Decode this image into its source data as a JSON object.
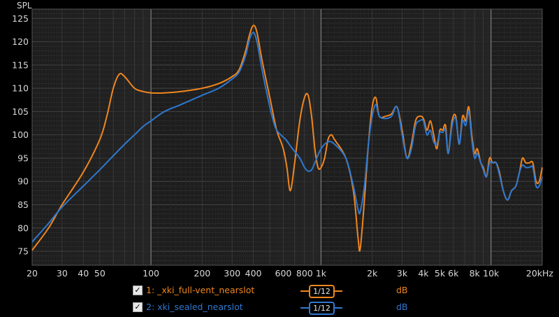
{
  "chart_data": {
    "type": "line",
    "xscale": "log",
    "xlim": [
      20,
      20000
    ],
    "ylim": [
      72,
      127
    ],
    "ylabel": "SPL",
    "grid": true,
    "x_ticks": [
      {
        "v": 20,
        "label": "20"
      },
      {
        "v": 30,
        "label": "30"
      },
      {
        "v": 40,
        "label": "40"
      },
      {
        "v": 50,
        "label": "50"
      },
      {
        "v": 100,
        "label": "100"
      },
      {
        "v": 200,
        "label": "200"
      },
      {
        "v": 300,
        "label": "300"
      },
      {
        "v": 400,
        "label": "400"
      },
      {
        "v": 600,
        "label": "600"
      },
      {
        "v": 800,
        "label": "800"
      },
      {
        "v": 1000,
        "label": "1k"
      },
      {
        "v": 2000,
        "label": "2k"
      },
      {
        "v": 3000,
        "label": "3k"
      },
      {
        "v": 4000,
        "label": "4k"
      },
      {
        "v": 5000,
        "label": "5k"
      },
      {
        "v": 6000,
        "label": "6k"
      },
      {
        "v": 8000,
        "label": "8k"
      },
      {
        "v": 10000,
        "label": "10k"
      },
      {
        "v": 20000,
        "label": "20kHz"
      }
    ],
    "y_ticks": [
      75,
      80,
      85,
      90,
      95,
      100,
      105,
      110,
      115,
      120,
      125
    ],
    "series": [
      {
        "name": "1: _xki_full-vent_nearslot",
        "color": "#f0861e",
        "points": [
          [
            20,
            75.2
          ],
          [
            25,
            80
          ],
          [
            30,
            85
          ],
          [
            40,
            92
          ],
          [
            50,
            99
          ],
          [
            55,
            104
          ],
          [
            60,
            110
          ],
          [
            65,
            113
          ],
          [
            70,
            112.5
          ],
          [
            80,
            110
          ],
          [
            90,
            109.3
          ],
          [
            100,
            109
          ],
          [
            120,
            109
          ],
          [
            150,
            109.3
          ],
          [
            200,
            110
          ],
          [
            250,
            111
          ],
          [
            300,
            112.5
          ],
          [
            330,
            114
          ],
          [
            360,
            118
          ],
          [
            380,
            121.5
          ],
          [
            400,
            123.5
          ],
          [
            420,
            122
          ],
          [
            450,
            116
          ],
          [
            500,
            108
          ],
          [
            540,
            102
          ],
          [
            560,
            100
          ],
          [
            600,
            97
          ],
          [
            630,
            93
          ],
          [
            660,
            88
          ],
          [
            700,
            94
          ],
          [
            750,
            103
          ],
          [
            800,
            108
          ],
          [
            840,
            108.5
          ],
          [
            880,
            104
          ],
          [
            920,
            97
          ],
          [
            960,
            93
          ],
          [
            1000,
            93
          ],
          [
            1050,
            95
          ],
          [
            1100,
            99
          ],
          [
            1150,
            100
          ],
          [
            1200,
            99
          ],
          [
            1400,
            95
          ],
          [
            1550,
            88
          ],
          [
            1650,
            78
          ],
          [
            1700,
            75.5
          ],
          [
            1800,
            86
          ],
          [
            1900,
            98
          ],
          [
            2000,
            106
          ],
          [
            2100,
            108
          ],
          [
            2200,
            104
          ],
          [
            2400,
            104
          ],
          [
            2600,
            104.5
          ],
          [
            2800,
            106
          ],
          [
            3000,
            101
          ],
          [
            3200,
            95
          ],
          [
            3400,
            98
          ],
          [
            3600,
            103
          ],
          [
            3800,
            104
          ],
          [
            4000,
            103.5
          ],
          [
            4200,
            101
          ],
          [
            4400,
            103
          ],
          [
            4600,
            100
          ],
          [
            4800,
            97
          ],
          [
            5000,
            101
          ],
          [
            5200,
            101
          ],
          [
            5400,
            102
          ],
          [
            5600,
            96
          ],
          [
            5900,
            103
          ],
          [
            6200,
            104
          ],
          [
            6500,
            98
          ],
          [
            6800,
            104
          ],
          [
            7100,
            103
          ],
          [
            7400,
            106
          ],
          [
            7700,
            100
          ],
          [
            8000,
            96
          ],
          [
            8300,
            97
          ],
          [
            8700,
            94
          ],
          [
            9000,
            93
          ],
          [
            9400,
            91
          ],
          [
            9800,
            95
          ],
          [
            10200,
            94
          ],
          [
            10700,
            94
          ],
          [
            11200,
            92
          ],
          [
            11800,
            88
          ],
          [
            12500,
            86
          ],
          [
            13200,
            88
          ],
          [
            14000,
            89
          ],
          [
            14700,
            92
          ],
          [
            15300,
            95
          ],
          [
            16000,
            94
          ],
          [
            16800,
            94
          ],
          [
            17600,
            94
          ],
          [
            18400,
            90
          ],
          [
            19200,
            90
          ],
          [
            20000,
            93
          ]
        ]
      },
      {
        "name": "2: xki_sealed_nearslot",
        "color": "#2f78d0",
        "points": [
          [
            20,
            77
          ],
          [
            25,
            81
          ],
          [
            30,
            84.5
          ],
          [
            40,
            89
          ],
          [
            50,
            92.5
          ],
          [
            60,
            95.5
          ],
          [
            70,
            98
          ],
          [
            80,
            100
          ],
          [
            90,
            101.8
          ],
          [
            100,
            103
          ],
          [
            120,
            105
          ],
          [
            150,
            106.5
          ],
          [
            200,
            108.5
          ],
          [
            250,
            110
          ],
          [
            300,
            112
          ],
          [
            330,
            113.5
          ],
          [
            360,
            117
          ],
          [
            380,
            120.5
          ],
          [
            400,
            122
          ],
          [
            420,
            120
          ],
          [
            450,
            114
          ],
          [
            500,
            106
          ],
          [
            540,
            101.5
          ],
          [
            580,
            100
          ],
          [
            620,
            99
          ],
          [
            680,
            97
          ],
          [
            750,
            95
          ],
          [
            800,
            93
          ],
          [
            840,
            92.2
          ],
          [
            880,
            92.5
          ],
          [
            920,
            94
          ],
          [
            1000,
            97
          ],
          [
            1100,
            98.5
          ],
          [
            1200,
            98
          ],
          [
            1400,
            95
          ],
          [
            1550,
            89
          ],
          [
            1650,
            84
          ],
          [
            1700,
            83.5
          ],
          [
            1800,
            89
          ],
          [
            1900,
            98
          ],
          [
            2000,
            104
          ],
          [
            2100,
            106.5
          ],
          [
            2200,
            104
          ],
          [
            2400,
            103.5
          ],
          [
            2600,
            104
          ],
          [
            2800,
            106
          ],
          [
            3000,
            100
          ],
          [
            3200,
            95
          ],
          [
            3400,
            97
          ],
          [
            3600,
            102
          ],
          [
            3800,
            103
          ],
          [
            4000,
            103
          ],
          [
            4200,
            100
          ],
          [
            4400,
            101
          ],
          [
            4600,
            98.5
          ],
          [
            4800,
            98
          ],
          [
            5000,
            100.5
          ],
          [
            5200,
            100.5
          ],
          [
            5400,
            101
          ],
          [
            5600,
            96
          ],
          [
            5900,
            102
          ],
          [
            6200,
            103.5
          ],
          [
            6500,
            98
          ],
          [
            6800,
            103
          ],
          [
            7100,
            102
          ],
          [
            7400,
            105
          ],
          [
            7700,
            99
          ],
          [
            8000,
            95
          ],
          [
            8300,
            96
          ],
          [
            8700,
            94
          ],
          [
            9000,
            92.5
          ],
          [
            9400,
            91
          ],
          [
            9800,
            94
          ],
          [
            10200,
            94
          ],
          [
            10700,
            94
          ],
          [
            11200,
            91.5
          ],
          [
            11800,
            88
          ],
          [
            12500,
            86
          ],
          [
            13200,
            88
          ],
          [
            14000,
            89
          ],
          [
            14700,
            92
          ],
          [
            15300,
            93.5
          ],
          [
            16000,
            93
          ],
          [
            16800,
            93
          ],
          [
            17600,
            93
          ],
          [
            18400,
            89
          ],
          [
            19200,
            89
          ],
          [
            20000,
            91
          ]
        ]
      }
    ]
  },
  "legend": {
    "items": [
      {
        "label": "1: _xki_full-vent_nearslot",
        "smoothing": "1/12",
        "unit": "dB",
        "color": "#f0861e"
      },
      {
        "label": "2: xki_sealed_nearslot",
        "smoothing": "1/12",
        "unit": "dB",
        "color": "#2f78d0"
      }
    ]
  }
}
